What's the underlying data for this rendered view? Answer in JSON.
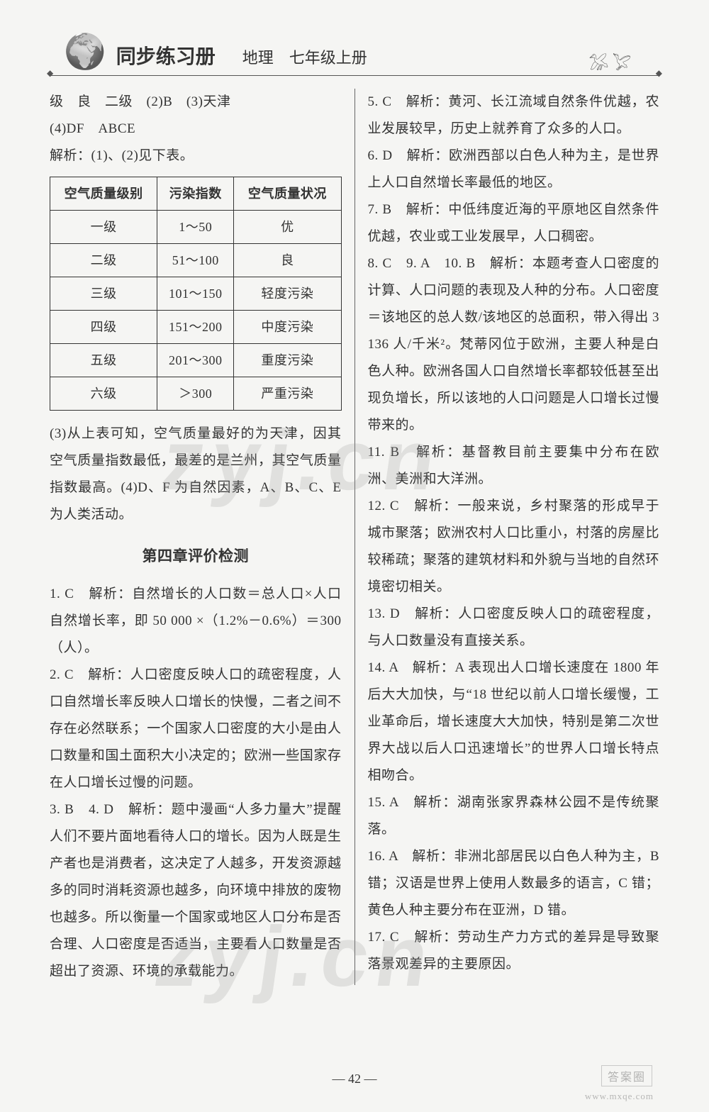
{
  "header": {
    "title_main": "同步练习册",
    "title_sub": "地理　七年级上册",
    "birds_glyph": "𓅮 𓅯"
  },
  "left": {
    "line1": "级　良　二级　(2)B　(3)天津",
    "line2": "(4)DF　ABCE",
    "analysis_intro": "解析：(1)、(2)见下表。",
    "table": {
      "headers": [
        "空气质量级别",
        "污染指数",
        "空气质量状况"
      ],
      "rows": [
        [
          "一级",
          "1～50",
          "优"
        ],
        [
          "二级",
          "51～100",
          "良"
        ],
        [
          "三级",
          "101～150",
          "轻度污染"
        ],
        [
          "四级",
          "151～200",
          "中度污染"
        ],
        [
          "五级",
          "201～300",
          "重度污染"
        ],
        [
          "六级",
          "＞300",
          "严重污染"
        ]
      ]
    },
    "after_table": "(3)从上表可知，空气质量最好的为天津，因其空气质量指数最低，最差的是兰州，其空气质量指数最高。(4)D、F 为自然因素，A、B、C、E 为人类活动。",
    "section_title": "第四章评价检测",
    "q1": "1. C　解析：自然增长的人口数＝总人口×人口自然增长率，即 50 000 ×（1.2%－0.6%）＝300（人）。",
    "q2": "2. C　解析：人口密度反映人口的疏密程度，人口自然增长率反映人口增长的快慢，二者之间不存在必然联系；一个国家人口密度的大小是由人口数量和国土面积大小决定的；欧洲一些国家存在人口增长过慢的问题。",
    "q3": "3. B　4. D　解析：题中漫画“人多力量大”提醒人们不要片面地看待人口的增长。因为人既是生产者也是消费者，这决定了人越多，开发资源越多的同时消耗资源也越多，向环境中排放的废物也越多。所以衡量一个国家或地区人口分布是否合理、人口密度是否适当，主要看人口数量是否超出了资源、环境的承载能力。"
  },
  "right": {
    "q5": "5. C　解析：黄河、长江流域自然条件优越，农业发展较早，历史上就养育了众多的人口。",
    "q6": "6. D　解析：欧洲西部以白色人种为主，是世界上人口自然增长率最低的地区。",
    "q7": "7. B　解析：中低纬度近海的平原地区自然条件优越，农业或工业发展早，人口稠密。",
    "q8": "8. C　9. A　10. B　解析：本题考查人口密度的计算、人口问题的表现及人种的分布。人口密度＝该地区的总人数/该地区的总面积，带入得出 3 136 人/千米²。梵蒂冈位于欧洲，主要人种是白色人种。欧洲各国人口自然增长率都较低甚至出现负增长，所以该地的人口问题是人口增长过慢带来的。",
    "q11": "11. B　解析：基督教目前主要集中分布在欧洲、美洲和大洋洲。",
    "q12": "12. C　解析：一般来说，乡村聚落的形成早于城市聚落；欧洲农村人口比重小，村落的房屋比较稀疏；聚落的建筑材料和外貌与当地的自然环境密切相关。",
    "q13": "13. D　解析：人口密度反映人口的疏密程度，与人口数量没有直接关系。",
    "q14": "14. A　解析：A 表现出人口增长速度在 1800 年后大大加快，与“18 世纪以前人口增长缓慢，工业革命后，增长速度大大加快，特别是第二次世界大战以后人口迅速增长”的世界人口增长特点相吻合。",
    "q15": "15. A　解析：湖南张家界森林公园不是传统聚落。",
    "q16": "16. A　解析：非洲北部居民以白色人种为主，B 错；汉语是世界上使用人数最多的语言，C 错；黄色人种主要分布在亚洲，D 错。",
    "q17": "17. C　解析：劳动生产力方式的差异是导致聚落景观差异的主要原因。"
  },
  "footer": {
    "page": "— 42 —",
    "stamp": "答案圈",
    "site": "www.mxqe.com"
  },
  "watermarks": {
    "wm1": "zyj.cn",
    "wm2": "zyj.cn"
  }
}
